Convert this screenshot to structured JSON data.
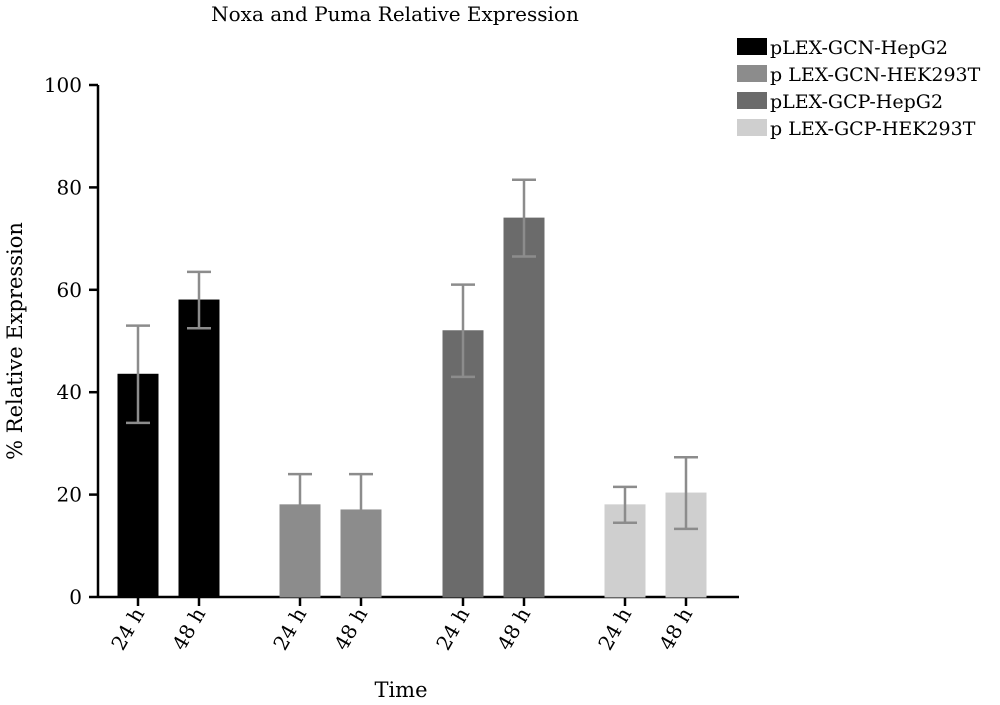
{
  "chart_data": {
    "type": "bar",
    "title": "Noxa and Puma Relative Expression",
    "xlabel": "Time",
    "ylabel": "% Relative Expression",
    "ylim": [
      0,
      100
    ],
    "yticks": [
      0,
      20,
      40,
      60,
      80,
      100
    ],
    "grid": false,
    "legend_position": "top-right",
    "series": [
      {
        "name": "pLEX-GCN-HepG2",
        "color": "#000000",
        "categories": [
          "24 h",
          "48 h"
        ],
        "values": [
          43.5,
          58
        ],
        "errors": [
          9.5,
          5.5
        ]
      },
      {
        "name": "p LEX-GCN-HEK293T",
        "color": "#8c8c8c",
        "categories": [
          "24 h",
          "48 h"
        ],
        "values": [
          18,
          17
        ],
        "errors": [
          6,
          7
        ]
      },
      {
        "name": "pLEX-GCP-HepG2",
        "color": "#6b6b6b",
        "categories": [
          "24 h",
          "48 h"
        ],
        "values": [
          52,
          74
        ],
        "errors": [
          9,
          7.5
        ]
      },
      {
        "name": "p LEX-GCP-HEK293T",
        "color": "#cfcfcf",
        "categories": [
          "24 h",
          "48 h"
        ],
        "values": [
          18,
          20.3
        ],
        "errors": [
          3.5,
          7
        ]
      }
    ],
    "error_bar_color": "#8c8c8c"
  }
}
